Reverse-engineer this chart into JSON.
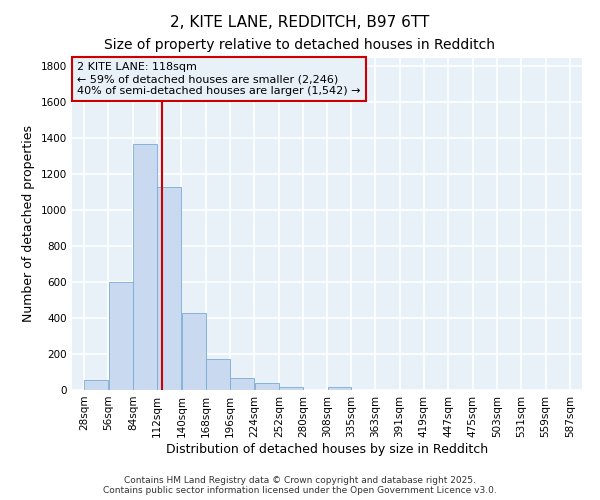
{
  "title": "2, KITE LANE, REDDITCH, B97 6TT",
  "subtitle": "Size of property relative to detached houses in Redditch",
  "xlabel": "Distribution of detached houses by size in Redditch",
  "ylabel": "Number of detached properties",
  "bar_color": "#c8d9f0",
  "bar_edge_color": "#7aaad4",
  "fig_bg_color": "#ffffff",
  "plot_bg_color": "#e8f0f8",
  "grid_color": "#ffffff",
  "vline_x": 118,
  "vline_color": "#cc0000",
  "bins": [
    28,
    56,
    84,
    112,
    140,
    168,
    196,
    224,
    252,
    280,
    308,
    335,
    363,
    391,
    419,
    447,
    475,
    503,
    531,
    559,
    587
  ],
  "bar_heights": [
    55,
    600,
    1370,
    1130,
    430,
    175,
    65,
    40,
    15,
    0,
    15,
    0,
    0,
    0,
    0,
    0,
    0,
    0,
    0,
    0
  ],
  "bin_labels": [
    "28sqm",
    "56sqm",
    "84sqm",
    "112sqm",
    "140sqm",
    "168sqm",
    "196sqm",
    "224sqm",
    "252sqm",
    "280sqm",
    "308sqm",
    "335sqm",
    "363sqm",
    "391sqm",
    "419sqm",
    "447sqm",
    "475sqm",
    "503sqm",
    "531sqm",
    "559sqm",
    "587sqm"
  ],
  "annotation_line1": "2 KITE LANE: 118sqm",
  "annotation_line2": "← 59% of detached houses are smaller (2,246)",
  "annotation_line3": "40% of semi-detached houses are larger (1,542) →",
  "annotation_box_color": "#cc0000",
  "ylim": [
    0,
    1850
  ],
  "yticks": [
    0,
    200,
    400,
    600,
    800,
    1000,
    1200,
    1400,
    1600,
    1800
  ],
  "footer_line1": "Contains HM Land Registry data © Crown copyright and database right 2025.",
  "footer_line2": "Contains public sector information licensed under the Open Government Licence v3.0.",
  "title_fontsize": 11,
  "subtitle_fontsize": 10,
  "axis_label_fontsize": 9,
  "tick_fontsize": 7.5,
  "annotation_fontsize": 8,
  "footer_fontsize": 6.5
}
